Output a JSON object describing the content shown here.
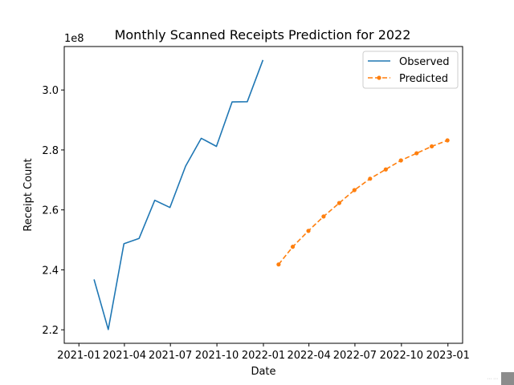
{
  "chart_data": {
    "type": "line",
    "title": "Monthly Scanned Receipts Prediction for 2022",
    "xlabel": "Date",
    "ylabel": "Receipt Count",
    "y_scale_label": "1e8",
    "xlim": [
      "2020-12-03",
      "2023-01-30"
    ],
    "ylim": [
      215500000.0,
      314500000.0
    ],
    "x_ticks": [
      "2021-01",
      "2021-04",
      "2021-07",
      "2021-10",
      "2022-01",
      "2022-04",
      "2022-07",
      "2022-10",
      "2023-01"
    ],
    "y_ticks": [
      2.2,
      2.4,
      2.6,
      2.8,
      3.0
    ],
    "legend_position": "top-right",
    "series": [
      {
        "name": "Observed",
        "color": "#1f77b4",
        "style": "solid",
        "marker": "none",
        "x": [
          "2021-01-31",
          "2021-02-28",
          "2021-03-31",
          "2021-04-30",
          "2021-05-31",
          "2021-06-30",
          "2021-07-31",
          "2021-08-31",
          "2021-09-30",
          "2021-10-31",
          "2021-11-30",
          "2021-12-31"
        ],
        "values": [
          236800000,
          220100000,
          248700000,
          250500000,
          263200000,
          260800000,
          274600000,
          283900000,
          281200000,
          296000000,
          296100000,
          310000000
        ]
      },
      {
        "name": "Predicted",
        "color": "#ff7f0e",
        "style": "dashed",
        "marker": "circle",
        "x": [
          "2022-01-31",
          "2022-02-28",
          "2022-03-31",
          "2022-04-30",
          "2022-05-31",
          "2022-06-30",
          "2022-07-31",
          "2022-08-31",
          "2022-09-30",
          "2022-10-31",
          "2022-11-30",
          "2022-12-31"
        ],
        "values": [
          241800000,
          247700000,
          253000000,
          257800000,
          262300000,
          266600000,
          270400000,
          273500000,
          276500000,
          278900000,
          281200000,
          283200000
        ]
      }
    ]
  }
}
